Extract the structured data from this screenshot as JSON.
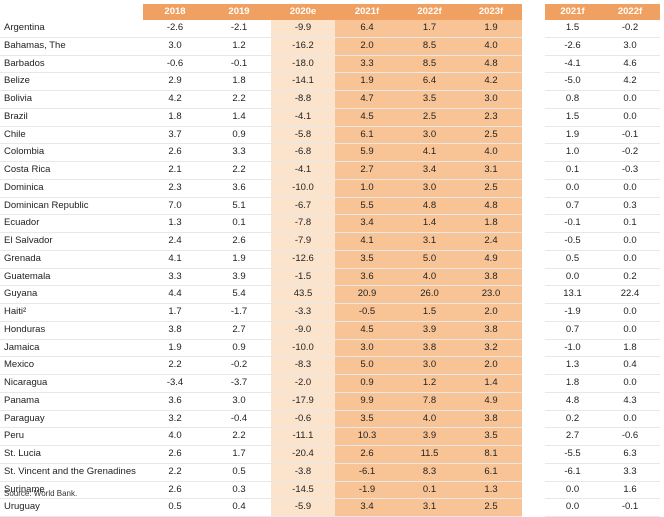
{
  "table": {
    "headers": [
      "",
      "2018",
      "2019",
      "2020e",
      "2021f",
      "2022f",
      "2023f",
      "",
      "2021f",
      "2022f"
    ],
    "rows": [
      {
        "country": "Argentina",
        "values": [
          "-2.6",
          "-2.1",
          "-9.9",
          "6.4",
          "1.7",
          "1.9",
          "1.5",
          "-0.2"
        ]
      },
      {
        "country": "Bahamas, The",
        "values": [
          "3.0",
          "1.2",
          "-16.2",
          "2.0",
          "8.5",
          "4.0",
          "-2.6",
          "3.0"
        ]
      },
      {
        "country": "Barbados",
        "values": [
          "-0.6",
          "-0.1",
          "-18.0",
          "3.3",
          "8.5",
          "4.8",
          "-4.1",
          "4.6"
        ]
      },
      {
        "country": "Belize",
        "values": [
          "2.9",
          "1.8",
          "-14.1",
          "1.9",
          "6.4",
          "4.2",
          "-5.0",
          "4.2"
        ]
      },
      {
        "country": "Bolivia",
        "values": [
          "4.2",
          "2.2",
          "-8.8",
          "4.7",
          "3.5",
          "3.0",
          "0.8",
          "0.0"
        ]
      },
      {
        "country": "Brazil",
        "values": [
          "1.8",
          "1.4",
          "-4.1",
          "4.5",
          "2.5",
          "2.3",
          "1.5",
          "0.0"
        ]
      },
      {
        "country": "Chile",
        "values": [
          "3.7",
          "0.9",
          "-5.8",
          "6.1",
          "3.0",
          "2.5",
          "1.9",
          "-0.1"
        ]
      },
      {
        "country": "Colombia",
        "values": [
          "2.6",
          "3.3",
          "-6.8",
          "5.9",
          "4.1",
          "4.0",
          "1.0",
          "-0.2"
        ]
      },
      {
        "country": "Costa Rica",
        "values": [
          "2.1",
          "2.2",
          "-4.1",
          "2.7",
          "3.4",
          "3.1",
          "0.1",
          "-0.3"
        ]
      },
      {
        "country": "Dominica",
        "values": [
          "2.3",
          "3.6",
          "-10.0",
          "1.0",
          "3.0",
          "2.5",
          "0.0",
          "0.0"
        ]
      },
      {
        "country": "Dominican Republic",
        "values": [
          "7.0",
          "5.1",
          "-6.7",
          "5.5",
          "4.8",
          "4.8",
          "0.7",
          "0.3"
        ]
      },
      {
        "country": "Ecuador",
        "values": [
          "1.3",
          "0.1",
          "-7.8",
          "3.4",
          "1.4",
          "1.8",
          "-0.1",
          "0.1"
        ]
      },
      {
        "country": "El Salvador",
        "values": [
          "2.4",
          "2.6",
          "-7.9",
          "4.1",
          "3.1",
          "2.4",
          "-0.5",
          "0.0"
        ]
      },
      {
        "country": "Grenada",
        "values": [
          "4.1",
          "1.9",
          "-12.6",
          "3.5",
          "5.0",
          "4.9",
          "0.5",
          "0.0"
        ]
      },
      {
        "country": "Guatemala",
        "values": [
          "3.3",
          "3.9",
          "-1.5",
          "3.6",
          "4.0",
          "3.8",
          "0.0",
          "0.2"
        ]
      },
      {
        "country": "Guyana",
        "values": [
          "4.4",
          "5.4",
          "43.5",
          "20.9",
          "26.0",
          "23.0",
          "13.1",
          "22.4"
        ]
      },
      {
        "country": "Haiti²",
        "values": [
          "1.7",
          "-1.7",
          "-3.3",
          "-0.5",
          "1.5",
          "2.0",
          "-1.9",
          "0.0"
        ]
      },
      {
        "country": "Honduras",
        "values": [
          "3.8",
          "2.7",
          "-9.0",
          "4.5",
          "3.9",
          "3.8",
          "0.7",
          "0.0"
        ]
      },
      {
        "country": "Jamaica",
        "values": [
          "1.9",
          "0.9",
          "-10.0",
          "3.0",
          "3.8",
          "3.2",
          "-1.0",
          "1.8"
        ]
      },
      {
        "country": "Mexico",
        "values": [
          "2.2",
          "-0.2",
          "-8.3",
          "5.0",
          "3.0",
          "2.0",
          "1.3",
          "0.4"
        ]
      },
      {
        "country": "Nicaragua",
        "values": [
          "-3.4",
          "-3.7",
          "-2.0",
          "0.9",
          "1.2",
          "1.4",
          "1.8",
          "0.0"
        ]
      },
      {
        "country": "Panama",
        "values": [
          "3.6",
          "3.0",
          "-17.9",
          "9.9",
          "7.8",
          "4.9",
          "4.8",
          "4.3"
        ]
      },
      {
        "country": "Paraguay",
        "values": [
          "3.2",
          "-0.4",
          "-0.6",
          "3.5",
          "4.0",
          "3.8",
          "0.2",
          "0.0"
        ]
      },
      {
        "country": "Peru",
        "values": [
          "4.0",
          "2.2",
          "-11.1",
          "10.3",
          "3.9",
          "3.5",
          "2.7",
          "-0.6"
        ]
      },
      {
        "country": "St. Lucia",
        "values": [
          "2.6",
          "1.7",
          "-20.4",
          "2.6",
          "11.5",
          "8.1",
          "-5.5",
          "6.3"
        ]
      },
      {
        "country": "St. Vincent and the Grenadines",
        "values": [
          "2.2",
          "0.5",
          "-3.8",
          "-6.1",
          "8.3",
          "6.1",
          "-6.1",
          "3.3"
        ]
      },
      {
        "country": "Suriname",
        "values": [
          "2.6",
          "0.3",
          "-14.5",
          "-1.9",
          "0.1",
          "1.3",
          "0.0",
          "1.6"
        ]
      },
      {
        "country": "Uruguay",
        "values": [
          "0.5",
          "0.4",
          "-5.9",
          "3.4",
          "3.1",
          "2.5",
          "0.0",
          "-0.1"
        ]
      }
    ]
  },
  "footer": {
    "source": "Source: World Bank."
  },
  "colors": {
    "header": "#f0a060",
    "estimate_column": "#fbe3cc",
    "forecast_columns": "#f8c496"
  }
}
